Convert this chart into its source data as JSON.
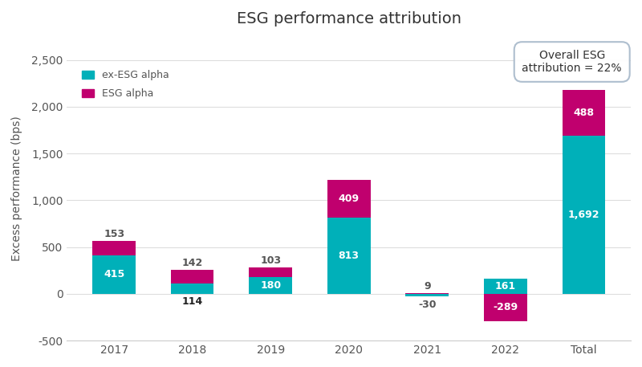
{
  "categories": [
    "2017",
    "2018",
    "2019",
    "2020",
    "2021",
    "2022",
    "Total"
  ],
  "ex_esg": [
    415,
    114,
    180,
    813,
    -30,
    161,
    1692
  ],
  "esg_alpha": [
    153,
    142,
    103,
    409,
    9,
    -289,
    488
  ],
  "color_teal": "#00B0B9",
  "color_magenta": "#C0006E",
  "title": "ESG performance attribution",
  "ylabel": "Excess performance (bps)",
  "ylim": [
    -500,
    2750
  ],
  "yticks": [
    -500,
    0,
    500,
    1000,
    1500,
    2000,
    2500
  ],
  "legend_teal": "ex-ESG alpha",
  "legend_magenta": "ESG alpha",
  "annotation_text": "Overall ESG\nattribution = 22%",
  "bg_color": "#FFFFFF"
}
